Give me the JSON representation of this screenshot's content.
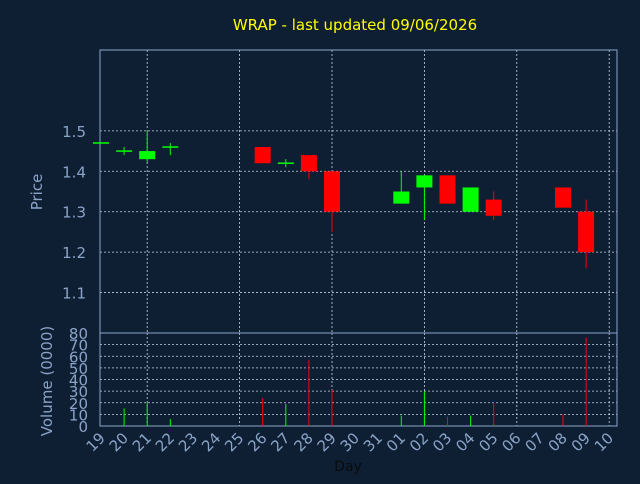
{
  "chart_data": {
    "type": "candlestick",
    "title": "WRAP - last updated 09/06/2026",
    "xlabel": "Day",
    "price_ylabel": "Price",
    "volume_ylabel": "Volume (0000)",
    "price_yticks": [
      "1.1",
      "1.2",
      "1.3",
      "1.4",
      "1.5"
    ],
    "price_ylim": [
      1.0,
      1.7
    ],
    "volume_yticks": [
      "0",
      "10",
      "20",
      "30",
      "40",
      "50",
      "60",
      "70",
      "80"
    ],
    "volume_ylim": [
      0,
      80
    ],
    "x_ticks": [
      "19",
      "20",
      "21",
      "22",
      "23",
      "24",
      "25",
      "26",
      "27",
      "28",
      "29",
      "30",
      "31",
      "01",
      "02",
      "03",
      "04",
      "05",
      "06",
      "07",
      "08",
      "09",
      "10"
    ],
    "grid": true,
    "colors": {
      "background": "#0f1f33",
      "plot_border": "#8aa4c8",
      "grid": "#c8d2e0",
      "up": "#00ff00",
      "down": "#ff0000",
      "title": "#ffff00",
      "axis_text": "#8aa4c8"
    },
    "candles": [
      {
        "day": "19",
        "open": 1.47,
        "high": 1.47,
        "low": 1.47,
        "close": 1.47,
        "volume": 0
      },
      {
        "day": "20",
        "open": 1.45,
        "high": 1.46,
        "low": 1.44,
        "close": 1.45,
        "volume": 15
      },
      {
        "day": "21",
        "open": 1.43,
        "high": 1.5,
        "low": 1.42,
        "close": 1.45,
        "volume": 20
      },
      {
        "day": "22",
        "open": 1.46,
        "high": 1.47,
        "low": 1.44,
        "close": 1.46,
        "volume": 6
      },
      {
        "day": "26",
        "open": 1.46,
        "high": 1.46,
        "low": 1.42,
        "close": 1.42,
        "volume": 24
      },
      {
        "day": "27",
        "open": 1.42,
        "high": 1.43,
        "low": 1.41,
        "close": 1.42,
        "volume": 19
      },
      {
        "day": "28",
        "open": 1.44,
        "high": 1.44,
        "low": 1.38,
        "close": 1.4,
        "volume": 57
      },
      {
        "day": "29",
        "open": 1.4,
        "high": 1.4,
        "low": 1.25,
        "close": 1.3,
        "volume": 31
      },
      {
        "day": "01",
        "open": 1.32,
        "high": 1.4,
        "low": 1.32,
        "close": 1.35,
        "volume": 9
      },
      {
        "day": "02",
        "open": 1.36,
        "high": 1.39,
        "low": 1.28,
        "close": 1.39,
        "volume": 30
      },
      {
        "day": "03",
        "open": 1.39,
        "high": 1.39,
        "low": 1.32,
        "close": 1.32,
        "volume": 8
      },
      {
        "day": "04",
        "open": 1.3,
        "high": 1.36,
        "low": 1.3,
        "close": 1.36,
        "volume": 9
      },
      {
        "day": "05",
        "open": 1.33,
        "high": 1.35,
        "low": 1.28,
        "close": 1.29,
        "volume": 20
      },
      {
        "day": "08",
        "open": 1.36,
        "high": 1.36,
        "low": 1.31,
        "close": 1.31,
        "volume": 10
      },
      {
        "day": "09",
        "open": 1.3,
        "high": 1.33,
        "low": 1.16,
        "close": 1.2,
        "volume": 76
      }
    ]
  }
}
